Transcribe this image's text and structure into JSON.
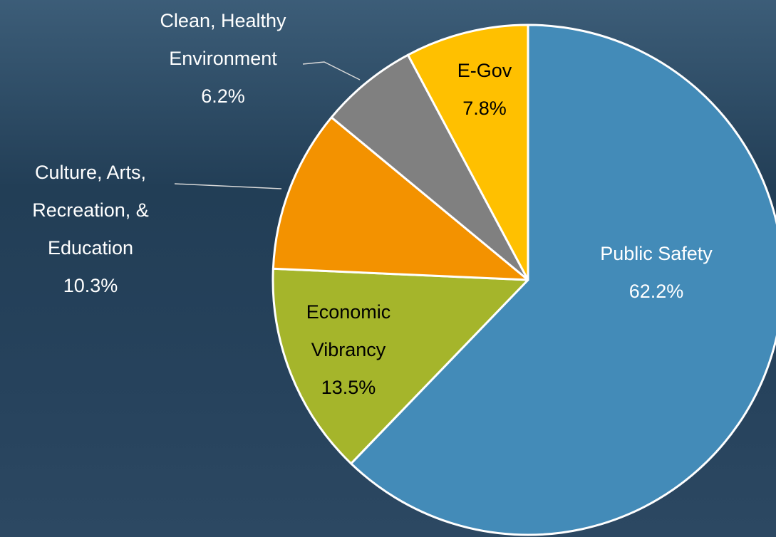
{
  "chart_data": {
    "type": "pie",
    "categories": [
      "Public Safety",
      "Economic Vibrancy",
      "Culture, Arts, Recreation, & Education",
      "Clean, Healthy Environment",
      "E-Gov"
    ],
    "values": [
      62.2,
      13.5,
      10.3,
      6.2,
      7.8
    ],
    "value_labels": [
      "62.2%",
      "13.5%",
      "10.3%",
      "6.2%",
      "7.8%"
    ],
    "colors": [
      "#438bb8",
      "#a5b52b",
      "#f39200",
      "#808080",
      "#ffc000"
    ]
  }
}
